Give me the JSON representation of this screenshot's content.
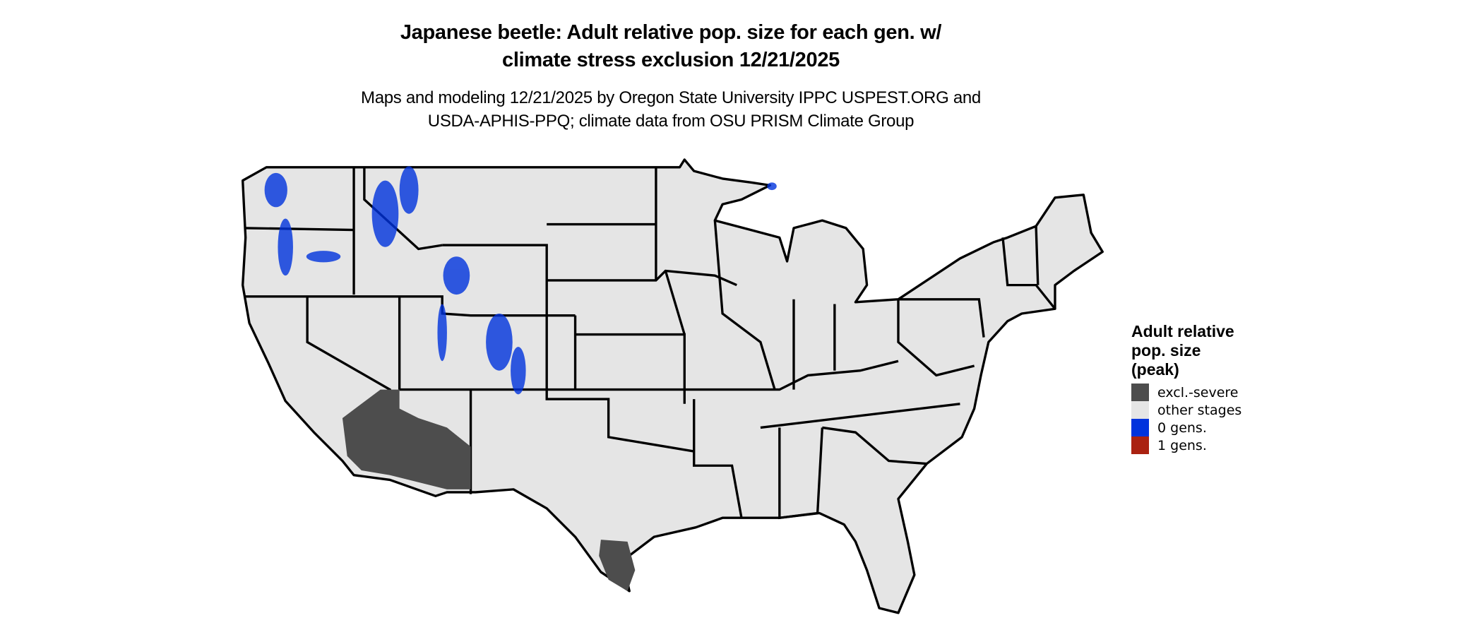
{
  "title": {
    "line1": "Japanese beetle: Adult relative pop. size for each gen. w/",
    "line2": "climate stress exclusion 12/21/2025"
  },
  "subtitle": {
    "line1": "Maps and modeling 12/21/2025 by Oregon State University IPPC USPEST.ORG and",
    "line2": "USDA-APHIS-PPQ; climate data from OSU PRISM Climate Group"
  },
  "map": {
    "region": "Contiguous United States",
    "land_color": "#e5e5e5",
    "border_color": "#000000"
  },
  "legend": {
    "title_lines": [
      "Adult relative",
      "pop. size",
      "(peak)"
    ],
    "items": [
      {
        "label": "excl.-severe",
        "color": "#4d4d4d"
      },
      {
        "label": "other stages",
        "color": "#e5e5e5"
      },
      {
        "label": "0 gens.",
        "color": "#0033dd"
      },
      {
        "label": "1 gens.",
        "color": "#aa2211"
      }
    ]
  }
}
